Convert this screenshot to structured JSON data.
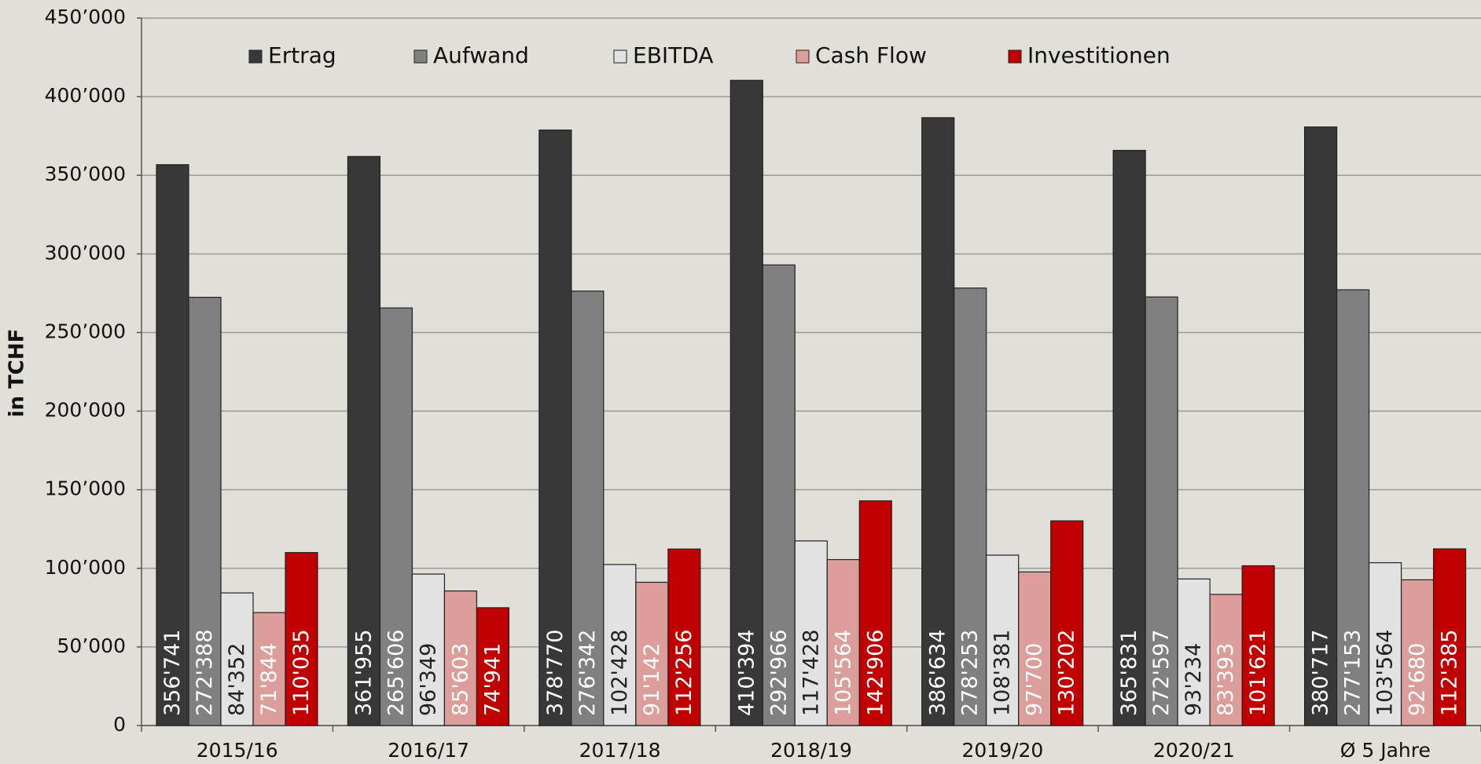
{
  "chart_data": {
    "type": "bar",
    "y_label": "in TCHF",
    "categories": [
      "2015/16",
      "2016/17",
      "2017/18",
      "2018/19",
      "2019/20",
      "2020/21",
      "Ø 5 Jahre"
    ],
    "series": [
      {
        "name": "Ertrag",
        "color": "#383838",
        "values": [
          356741,
          361955,
          378770,
          410394,
          386634,
          365831,
          380717
        ],
        "value_labels": [
          "356'741",
          "361'955",
          "378'770",
          "410'394",
          "386'634",
          "365'831",
          "380'717"
        ]
      },
      {
        "name": "Aufwand",
        "color": "#808080",
        "values": [
          272388,
          265606,
          276342,
          292966,
          278253,
          272597,
          277153
        ],
        "value_labels": [
          "272'388",
          "265'606",
          "276'342",
          "292'966",
          "278'253",
          "272'597",
          "277'153"
        ]
      },
      {
        "name": "EBITDA",
        "color": "#e2e2e2",
        "values": [
          84352,
          96349,
          102428,
          117428,
          108381,
          93234,
          103564
        ],
        "value_labels": [
          "84'352",
          "96'349",
          "102'428",
          "117'428",
          "108'381",
          "93'234",
          "103'564"
        ]
      },
      {
        "name": "Cash Flow",
        "color": "#dc9e9a",
        "values": [
          71844,
          85603,
          91142,
          105564,
          97700,
          83393,
          92680
        ],
        "value_labels": [
          "71'844",
          "85'603",
          "91'142",
          "105'564",
          "97'700",
          "83'393",
          "92'680"
        ]
      },
      {
        "name": "Investitionen",
        "color": "#c00000",
        "values": [
          110035,
          74941,
          112256,
          142906,
          130202,
          101621,
          112385
        ],
        "value_labels": [
          "110'035",
          "74'941",
          "112'256",
          "142'906",
          "130'202",
          "101'621",
          "112'385"
        ]
      }
    ],
    "ylim": [
      0,
      450000
    ],
    "yticks": [
      0,
      {
        "value": 50000,
        "label": "50’000"
      },
      {
        "value": 100000,
        "label": "100’000"
      },
      {
        "value": 150000,
        "label": "150’000"
      },
      {
        "value": 200000,
        "label": "200’000"
      },
      {
        "value": 250000,
        "label": "250’000"
      },
      {
        "value": 300000,
        "label": "300’000"
      },
      {
        "value": 350000,
        "label": "350’000"
      },
      {
        "value": 400000,
        "label": "400’000"
      },
      {
        "value": 450000,
        "label": "450’000"
      }
    ],
    "grid": true
  }
}
